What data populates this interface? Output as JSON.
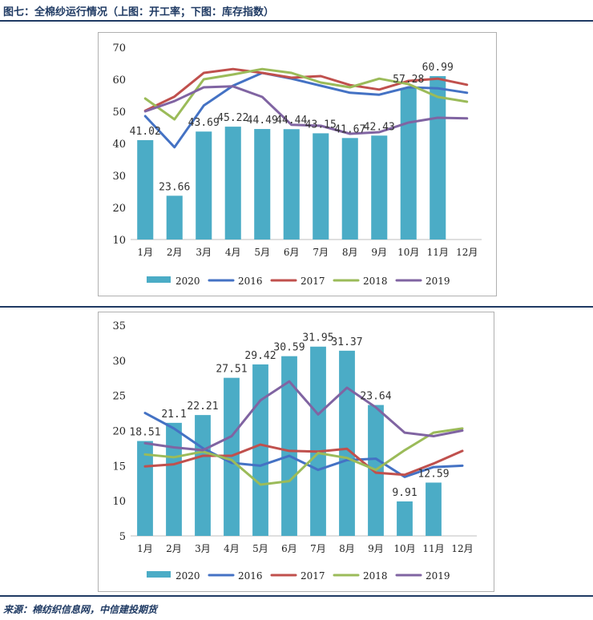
{
  "figure": {
    "title": "图七：全棉纱运行情况（上图：开工率；下图：库存指数）",
    "source": "来源：棉纺织信息网，中信建投期货"
  },
  "colors": {
    "2020": "#4bacc6",
    "2016": "#4472c4",
    "2017": "#c0504d",
    "2018": "#9bbb59",
    "2019": "#8064a2",
    "rule": "#1f3a63"
  },
  "chart_data": [
    {
      "type": "bar",
      "title": "",
      "xlabel": "",
      "ylabel": "",
      "categories": [
        "1月",
        "2月",
        "3月",
        "4月",
        "5月",
        "6月",
        "7月",
        "8月",
        "9月",
        "10月",
        "11月",
        "12月"
      ],
      "ylim": [
        10,
        70
      ],
      "yticks": [
        10,
        20,
        30,
        40,
        50,
        60,
        70
      ],
      "grid": false,
      "legend_position": "bottom",
      "bar_series": {
        "name": "2020",
        "values": [
          41.02,
          23.66,
          43.69,
          45.22,
          44.49,
          44.44,
          43.15,
          41.67,
          42.43,
          57.28,
          60.99,
          null
        ],
        "labels": [
          "41.02",
          "23.66",
          "43.69",
          "45.22",
          "44.49",
          "44.44",
          "43.15",
          "41.67",
          "42.43",
          "57.28",
          "60.99",
          ""
        ]
      },
      "line_series": [
        {
          "name": "2016",
          "values": [
            48.5,
            38.8,
            51.8,
            58.0,
            62.0,
            60.2,
            58.0,
            55.8,
            55.2,
            57.5,
            57.2,
            55.8
          ]
        },
        {
          "name": "2017",
          "values": [
            50.2,
            54.6,
            62.0,
            63.2,
            62.0,
            60.5,
            61.0,
            58.2,
            56.8,
            59.5,
            60.2,
            58.3
          ]
        },
        {
          "name": "2018",
          "values": [
            54.0,
            47.5,
            60.0,
            61.5,
            63.2,
            62.0,
            59.0,
            57.5,
            60.2,
            58.5,
            54.5,
            53.0
          ]
        },
        {
          "name": "2019",
          "values": [
            50.0,
            53.2,
            57.5,
            57.8,
            54.5,
            45.8,
            45.5,
            43.0,
            43.5,
            46.5,
            48.0,
            47.8
          ]
        }
      ]
    },
    {
      "type": "bar",
      "title": "",
      "xlabel": "",
      "ylabel": "",
      "categories": [
        "1月",
        "2月",
        "3月",
        "4月",
        "5月",
        "6月",
        "7月",
        "8月",
        "9月",
        "10月",
        "11月",
        "12月"
      ],
      "ylim": [
        5,
        35
      ],
      "yticks": [
        5,
        10,
        15,
        20,
        25,
        30,
        35
      ],
      "grid": false,
      "legend_position": "bottom",
      "bar_series": {
        "name": "2020",
        "values": [
          18.51,
          21.1,
          22.21,
          27.51,
          29.42,
          30.59,
          31.95,
          31.37,
          23.64,
          9.91,
          12.59,
          null
        ],
        "labels": [
          "18.51",
          "21.1",
          "22.21",
          "27.51",
          "29.42",
          "30.59",
          "31.95",
          "31.37",
          "23.64",
          "9.91",
          "12.59",
          ""
        ]
      },
      "line_series": [
        {
          "name": "2016",
          "values": [
            22.5,
            20.3,
            17.5,
            15.4,
            15.0,
            16.4,
            14.4,
            15.8,
            16.0,
            13.4,
            14.8,
            15.0
          ]
        },
        {
          "name": "2017",
          "values": [
            14.9,
            15.2,
            16.4,
            16.4,
            18.0,
            17.1,
            17.0,
            17.4,
            14.0,
            13.7,
            15.3,
            17.1
          ]
        },
        {
          "name": "2018",
          "values": [
            16.6,
            16.2,
            17.0,
            15.8,
            12.3,
            12.8,
            16.8,
            16.1,
            14.4,
            17.2,
            19.7,
            20.3
          ]
        },
        {
          "name": "2019",
          "values": [
            18.2,
            17.6,
            17.2,
            19.2,
            24.3,
            27.0,
            22.3,
            26.1,
            23.3,
            19.7,
            19.2,
            20.0
          ]
        }
      ]
    }
  ]
}
